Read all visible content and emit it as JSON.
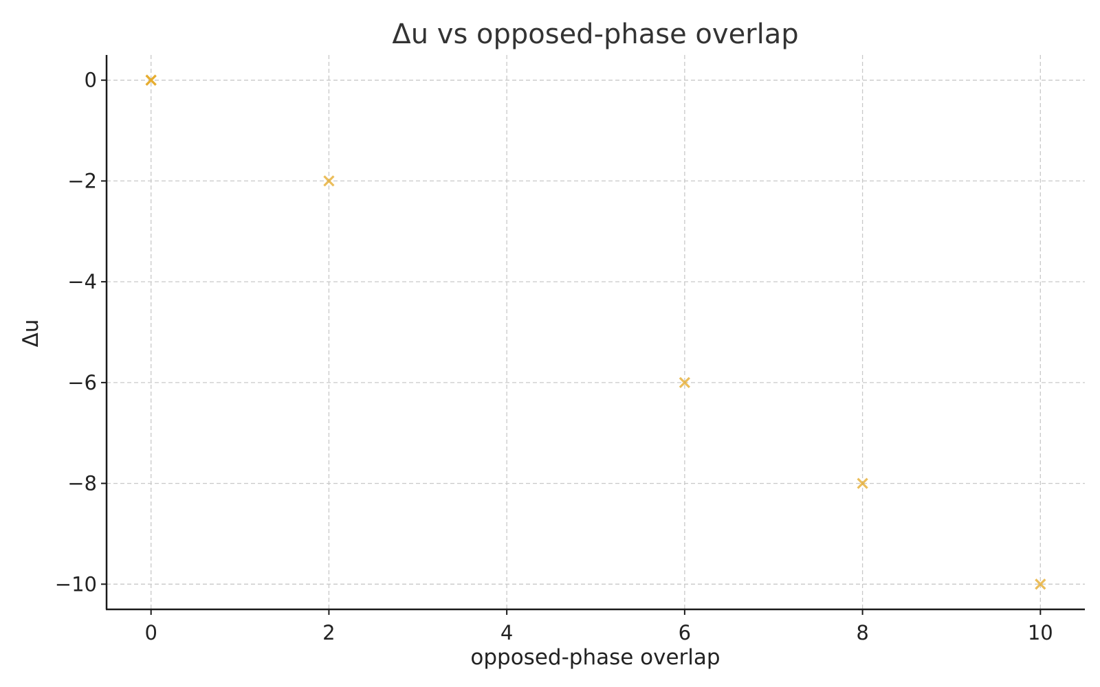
{
  "chart_data": {
    "type": "scatter",
    "title": "Δu vs opposed-phase overlap",
    "xlabel": "opposed-phase overlap",
    "ylabel": "Δu",
    "xlim": [
      -0.5,
      10.5
    ],
    "ylim": [
      -10.5,
      0.5
    ],
    "xticks": [
      0,
      2,
      4,
      6,
      8,
      10
    ],
    "yticks": [
      0,
      -2,
      -4,
      -6,
      -8,
      -10
    ],
    "xtick_labels": [
      "0",
      "2",
      "4",
      "6",
      "8",
      "10"
    ],
    "ytick_labels": [
      "0",
      "−2",
      "−4",
      "−6",
      "−8",
      "−10"
    ],
    "grid": true,
    "marker": "x",
    "color": "#E5A823",
    "series": [
      {
        "name": "Δu",
        "x": [
          0,
          0,
          2,
          6,
          8,
          10
        ],
        "y": [
          0,
          0,
          -2,
          -6,
          -8,
          -10
        ]
      }
    ]
  }
}
